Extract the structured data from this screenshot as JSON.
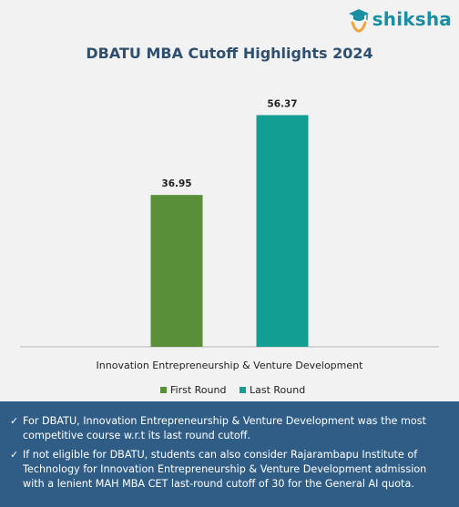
{
  "brand": {
    "name": "shiksha",
    "logo_icon": "graduation-cap-icon",
    "color": "#1a8fa3"
  },
  "chart_data": {
    "type": "bar",
    "title": "DBATU MBA Cutoff Highlights 2024",
    "categories": [
      "Innovation Entrepreneurship & Venture Development"
    ],
    "series": [
      {
        "name": "First Round",
        "values": [
          36.95
        ],
        "color": "#5a8f3a"
      },
      {
        "name": "Last Round",
        "values": [
          56.37
        ],
        "color": "#129e92"
      }
    ],
    "data_labels": [
      "36.95",
      "56.37"
    ],
    "ylim": [
      0,
      66
    ],
    "grid": false,
    "legend": "bottom"
  },
  "notes": [
    "For DBATU, Innovation Entrepreneurship & Venture Development was the most competitive course w.r.t its last round cutoff.",
    "If not eligible for DBATU, students can also consider Rajarambapu Institute of Technology for Innovation Entrepreneurship & Venture Development admission with a lenient MAH MBA CET last-round cutoff of 30 for the General AI quota."
  ],
  "colors": {
    "footer_bg": "#2f5d86",
    "title": "#2f4f6f",
    "background": "#f2f2f2"
  }
}
